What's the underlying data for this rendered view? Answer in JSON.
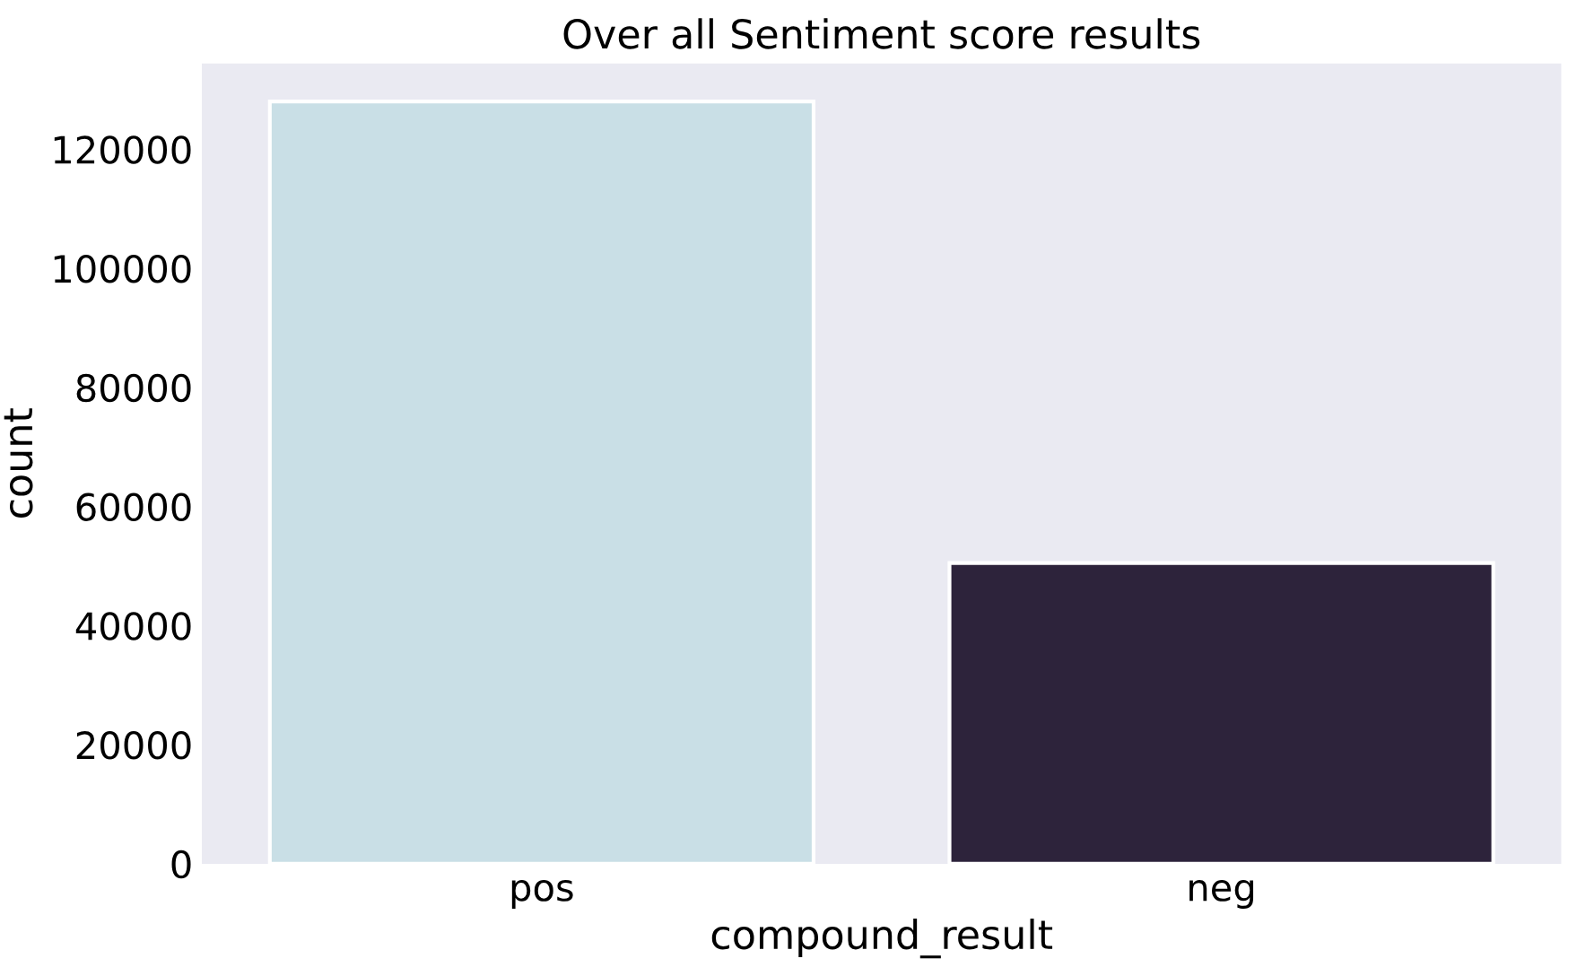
{
  "chart_data": {
    "type": "bar",
    "title": "Over all Sentiment score results",
    "xlabel": "compound_result",
    "ylabel": "count",
    "categories": [
      "pos",
      "neg"
    ],
    "values": [
      128000,
      50500
    ],
    "colors": [
      "#c9dfe6",
      "#2d233b"
    ],
    "ylim": [
      0,
      134400
    ],
    "yticks": [
      0,
      20000,
      40000,
      60000,
      80000,
      100000,
      120000
    ],
    "grid": false
  }
}
